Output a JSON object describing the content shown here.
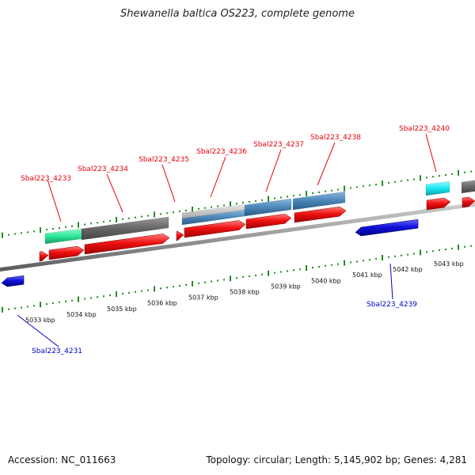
{
  "title": "Shewanella baltica OS223, complete genome",
  "footer": {
    "accession": "Accession: NC_011663",
    "summary": "Topology: circular; Length: 5,145,902 bp; Genes: 4,281"
  },
  "scale_labels": [
    "5033 kbp",
    "5034 kbp",
    "5035 kbp",
    "5036 kbp",
    "5037 kbp",
    "5038 kbp",
    "5039 kbp",
    "5040 kbp",
    "5041 kbp",
    "5042 kbp",
    "5043 kbp"
  ],
  "genes": {
    "forward": [
      {
        "name": "Sbal223_4233"
      },
      {
        "name": "Sbal223_4234"
      },
      {
        "name": "Sbal223_4235"
      },
      {
        "name": "Sbal223_4236"
      },
      {
        "name": "Sbal223_4237"
      },
      {
        "name": "Sbal223_4238"
      },
      {
        "name": "Sbal223_4240"
      }
    ],
    "reverse": [
      {
        "name": "Sbal223_4231"
      },
      {
        "name": "Sbal223_4239"
      }
    ]
  },
  "colors": {
    "forward_cds": "#ee1111",
    "reverse_cds": "#1111dd",
    "backbone": "#9a9a9a",
    "tick": "#228b22",
    "feature_green": "#2ee89a",
    "feature_gray": "#6a6a6a",
    "feature_steel": "#4a86b8",
    "feature_cyan": "#18e8f0"
  }
}
